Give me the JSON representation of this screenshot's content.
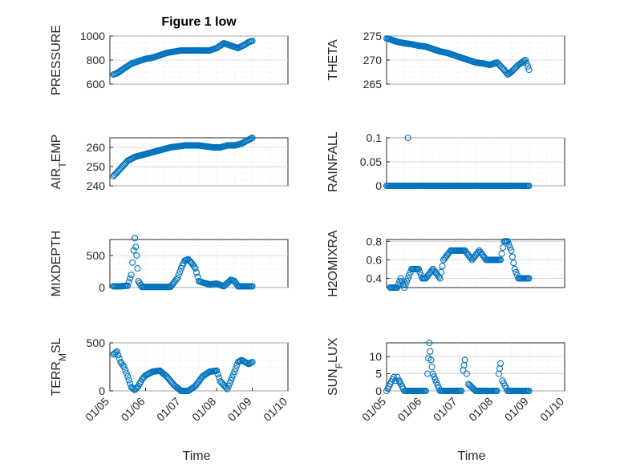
{
  "chart_data": [
    {
      "type": "scatter",
      "title": "Figure 1 low",
      "ylabel": "PRESSURE",
      "ylabel_sub": "",
      "ylabel_end": "",
      "ylim": [
        600,
        1000
      ],
      "yticks": [
        "1000",
        "800",
        "600"
      ],
      "ytick_values": [
        1000,
        800,
        600
      ],
      "xlim": [
        0,
        5
      ],
      "xticks": [],
      "xtick_values": [],
      "x": [
        0.1,
        0.2,
        0.3,
        0.4,
        0.5,
        0.6,
        0.7,
        0.8,
        0.9,
        1.0,
        1.2,
        1.4,
        1.6,
        1.8,
        2.0,
        2.2,
        2.4,
        2.6,
        2.8,
        3.0,
        3.2,
        3.4,
        3.6,
        3.8,
        3.9,
        4.0
      ],
      "y": [
        680,
        690,
        710,
        730,
        750,
        770,
        780,
        790,
        800,
        810,
        820,
        840,
        860,
        870,
        880,
        880,
        880,
        880,
        880,
        900,
        940,
        920,
        900,
        930,
        950,
        960
      ],
      "color": "#0072bd"
    },
    {
      "type": "scatter",
      "title": "",
      "ylabel": "THETA",
      "ylabel_sub": "",
      "ylabel_end": "",
      "ylim": [
        265,
        275
      ],
      "yticks": [
        "275",
        "270",
        "265"
      ],
      "ytick_values": [
        275,
        270,
        265
      ],
      "xlim": [
        0,
        5
      ],
      "xticks": [],
      "xtick_values": [],
      "x": [
        0.0,
        0.1,
        0.3,
        0.5,
        0.7,
        0.9,
        1.1,
        1.3,
        1.5,
        1.7,
        1.9,
        2.1,
        2.3,
        2.5,
        2.7,
        2.9,
        3.1,
        3.3,
        3.4,
        3.5,
        3.7,
        3.9,
        4.0
      ],
      "y": [
        274.5,
        274.3,
        273.8,
        273.5,
        273.3,
        273.0,
        272.8,
        272.3,
        271.8,
        271.5,
        271.0,
        270.5,
        270.0,
        269.5,
        269.3,
        269.0,
        269.5,
        268.0,
        267.0,
        267.5,
        269.0,
        270.0,
        268.0
      ],
      "color": "#0072bd"
    },
    {
      "type": "scatter",
      "title": "",
      "ylabel": "AIR",
      "ylabel_sub": "T",
      "ylabel_end": "EMP",
      "ylim": [
        240,
        265
      ],
      "yticks": [
        "260",
        "250",
        "240"
      ],
      "ytick_values": [
        260,
        250,
        240
      ],
      "xlim": [
        0,
        5
      ],
      "xticks": [],
      "xtick_values": [],
      "x": [
        0.1,
        0.2,
        0.3,
        0.4,
        0.5,
        0.7,
        0.9,
        1.1,
        1.3,
        1.5,
        1.7,
        1.9,
        2.1,
        2.3,
        2.5,
        2.7,
        2.9,
        3.1,
        3.3,
        3.5,
        3.7,
        3.9,
        4.0
      ],
      "y": [
        245,
        247,
        249,
        251,
        253,
        255,
        256,
        257,
        258,
        259,
        260,
        260.5,
        261,
        261,
        261,
        260.5,
        260,
        260,
        261,
        261,
        262,
        264,
        265
      ],
      "color": "#0072bd"
    },
    {
      "type": "scatter",
      "title": "",
      "ylabel": "RAINFALL",
      "ylabel_sub": "",
      "ylabel_end": "",
      "ylim": [
        0,
        0.1
      ],
      "yticks": [
        "0.1",
        "0.05",
        "0"
      ],
      "ytick_values": [
        0.1,
        0.05,
        0
      ],
      "xlim": [
        0,
        5
      ],
      "xticks": [],
      "xtick_values": [],
      "x": [
        0.0,
        0.3,
        0.6,
        0.9,
        1.2,
        1.5,
        1.8,
        2.1,
        2.4,
        2.7,
        3.0,
        3.3,
        3.6,
        3.9,
        4.0,
        0.6
      ],
      "y": [
        0,
        0,
        0,
        0,
        0,
        0,
        0,
        0,
        0,
        0,
        0,
        0,
        0,
        0,
        0,
        0.1
      ],
      "color": "#0072bd"
    },
    {
      "type": "scatter",
      "title": "",
      "ylabel": "MIXDEPTH",
      "ylabel_sub": "",
      "ylabel_end": "",
      "ylim": [
        0,
        750
      ],
      "yticks": [
        "500",
        "0"
      ],
      "ytick_values": [
        500,
        0
      ],
      "xlim": [
        0,
        5
      ],
      "xticks": [],
      "xtick_values": [],
      "x": [
        0.1,
        0.3,
        0.5,
        0.6,
        0.7,
        0.75,
        0.8,
        0.9,
        1.1,
        1.3,
        1.5,
        1.7,
        1.9,
        2.0,
        2.1,
        2.2,
        2.3,
        2.4,
        2.5,
        2.6,
        2.8,
        3.0,
        3.2,
        3.4,
        3.5,
        3.6,
        3.8,
        4.0
      ],
      "y": [
        20,
        20,
        30,
        200,
        770,
        500,
        100,
        10,
        10,
        10,
        10,
        10,
        150,
        300,
        420,
        440,
        380,
        300,
        100,
        80,
        50,
        60,
        20,
        120,
        100,
        20,
        20,
        20
      ],
      "color": "#0072bd"
    },
    {
      "type": "scatter",
      "title": "",
      "ylabel": "H2OMIXRA",
      "ylabel_sub": "",
      "ylabel_end": "",
      "ylim": [
        0.3,
        0.82
      ],
      "yticks": [
        "0.8",
        "0.6",
        "0.4"
      ],
      "ytick_values": [
        0.8,
        0.6,
        0.4
      ],
      "xlim": [
        0,
        5
      ],
      "xticks": [],
      "xtick_values": [],
      "x": [
        0.1,
        0.3,
        0.4,
        0.5,
        0.6,
        0.7,
        0.9,
        1.0,
        1.1,
        1.3,
        1.5,
        1.6,
        1.8,
        2.0,
        2.2,
        2.4,
        2.6,
        2.8,
        3.0,
        3.2,
        3.3,
        3.4,
        3.5,
        3.6,
        3.7,
        3.8,
        4.0
      ],
      "y": [
        0.3,
        0.3,
        0.4,
        0.3,
        0.4,
        0.5,
        0.5,
        0.4,
        0.4,
        0.5,
        0.4,
        0.6,
        0.7,
        0.7,
        0.7,
        0.6,
        0.7,
        0.6,
        0.6,
        0.6,
        0.8,
        0.8,
        0.7,
        0.5,
        0.4,
        0.4,
        0.4
      ],
      "color": "#0072bd"
    },
    {
      "type": "scatter",
      "title": "",
      "ylabel": "TERR",
      "ylabel_sub": "M",
      "ylabel_end": "SL",
      "ylim": [
        0,
        500
      ],
      "yticks": [
        "500",
        "0"
      ],
      "ytick_values": [
        500,
        0
      ],
      "xlim": [
        0,
        5
      ],
      "xticks": [
        "01/05",
        "01/06",
        "01/07",
        "01/08",
        "01/09",
        "01/10"
      ],
      "xtick_values": [
        0,
        1,
        2,
        3,
        4,
        5
      ],
      "x": [
        0.1,
        0.2,
        0.3,
        0.4,
        0.5,
        0.6,
        0.7,
        0.8,
        0.9,
        1.0,
        1.2,
        1.4,
        1.6,
        1.8,
        2.0,
        2.2,
        2.4,
        2.6,
        2.8,
        3.0,
        3.1,
        3.3,
        3.5,
        3.6,
        3.7,
        3.8,
        3.9,
        4.0
      ],
      "y": [
        380,
        410,
        300,
        250,
        150,
        40,
        10,
        50,
        120,
        160,
        200,
        210,
        150,
        60,
        0,
        0,
        50,
        150,
        200,
        210,
        100,
        20,
        200,
        300,
        320,
        300,
        280,
        300
      ],
      "color": "#0072bd"
    },
    {
      "type": "scatter",
      "title": "",
      "ylabel": "SUN",
      "ylabel_sub": "F",
      "ylabel_end": "LUX",
      "ylim": [
        0,
        14
      ],
      "yticks": [
        "10",
        "5",
        "0"
      ],
      "ytick_values": [
        10,
        5,
        0
      ],
      "xlim": [
        0,
        5
      ],
      "xticks": [
        "01/05",
        "01/06",
        "01/07",
        "01/08",
        "01/09",
        "01/10"
      ],
      "xtick_values": [
        0,
        1,
        2,
        3,
        4,
        5
      ],
      "x": [
        0.0,
        0.1,
        0.2,
        0.25,
        0.3,
        0.35,
        0.4,
        0.5,
        0.7,
        0.9,
        1.1,
        1.15,
        1.2,
        1.25,
        1.3,
        1.5,
        1.7,
        1.9,
        2.1,
        2.15,
        2.2,
        2.25,
        2.3,
        2.5,
        2.7,
        2.9,
        3.1,
        3.15,
        3.2,
        3.25,
        3.4,
        3.6,
        3.8,
        4.0
      ],
      "y": [
        0,
        2,
        4,
        3,
        4,
        3,
        2,
        0,
        0,
        0,
        0,
        5,
        14,
        9,
        5,
        0,
        0,
        0,
        0,
        6,
        9,
        5,
        2,
        0,
        0,
        0,
        0,
        5,
        8,
        3,
        0,
        0,
        0,
        0
      ],
      "color": "#0072bd"
    }
  ],
  "xlabels": {
    "left": "Time",
    "right": "Time"
  }
}
